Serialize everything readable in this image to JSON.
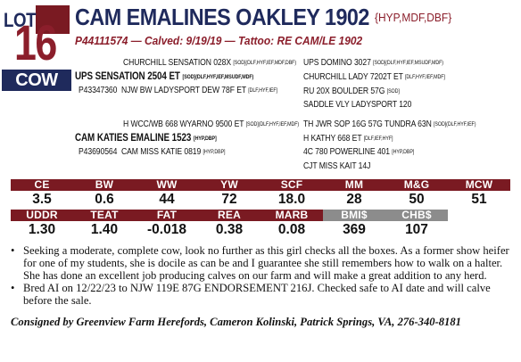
{
  "lot": {
    "label": "LOT",
    "number": "16",
    "type": "COW"
  },
  "animal": {
    "name": "CAM EMALINES OAKLEY 1902",
    "codes": "{HYP,MDF,DBF}",
    "reg_line": "P44111574 — Calved: 9/19/19 — Tattoo: RE CAM/LE 1902"
  },
  "pedigree": {
    "sire": {
      "sire_sire": {
        "name": "CHURCHILL SENSATION 028X",
        "tags": "[SOD](DLF,HYF,IEF,MDF,DBF)"
      },
      "name": "UPS SENSATION 2504 ET",
      "tags": "[SOD](DLF,HYF,IEF,MSUDF,MDF)",
      "reg": "P43347360",
      "sire_dam": {
        "name": "NJW BW LADYSPORT DEW 78F ET",
        "tags": "[DLF,HYF,IEF]"
      },
      "right": [
        {
          "name": "UPS DOMINO 3027",
          "tags": "[SOD](DLF,HYF,IEF,MSUDF,MDF)"
        },
        {
          "name": "CHURCHILL LADY 7202T ET",
          "tags": "[DLF,HYF,IEF,MDF]"
        },
        {
          "name": "RU 20X BOULDER 57G",
          "tags": "[SOD]"
        },
        {
          "name": "SADDLE VLY LADYSPORT 120",
          "tags": ""
        }
      ]
    },
    "dam": {
      "dam_sire": {
        "name": "H WCC/WB 668 WYARNO 9500 ET",
        "tags": "[SOD](DLF,HYF,IEF,MDF)"
      },
      "name": "CAM KATIES EMALINE 1523",
      "tags": "[HYP,DBP]",
      "reg": "P43690564",
      "dam_dam": {
        "name": "CAM MISS KATIE 0819",
        "tags": "[HYP,DBP]"
      },
      "right": [
        {
          "name": "TH JWR SOP 16G 57G TUNDRA 63N",
          "tags": "[SOD](DLF,HYF,IEF)"
        },
        {
          "name": "H KATHY 668 ET",
          "tags": "[DLF,IEF,HYF]"
        },
        {
          "name": "4C 780 POWERLINE 401",
          "tags": "[HYP,DBP]"
        },
        {
          "name": "CJT MISS KAIT 14J",
          "tags": ""
        }
      ]
    }
  },
  "epd_row1": {
    "headers": [
      "CE",
      "BW",
      "WW",
      "YW",
      "SCF",
      "MM",
      "M&G",
      "MCW"
    ],
    "values": [
      "3.5",
      "0.6",
      "44",
      "72",
      "18.0",
      "28",
      "50",
      "51"
    ]
  },
  "epd_row2": {
    "headers": [
      "UDDR",
      "TEAT",
      "FAT",
      "REA",
      "MARB",
      "BMI$",
      "CHB$",
      ""
    ],
    "values": [
      "1.30",
      "1.40",
      "-0.018",
      "0.38",
      "0.08",
      "369",
      "107",
      ""
    ]
  },
  "comments": [
    "Seeking a moderate, complete cow, look no further as this girl checks all the boxes. As a former show heifer for one of my students, she is docile as can be and I guarantee she still remembers how to walk on a halter. She has done an excellent job producing calves on our farm and will make a great addition to any herd.",
    "Bred AI on 12/22/23 to NJW 119E 87G ENDORSEMENT 216J. Checked safe to AI date and will calve before the sale."
  ],
  "consigned": "Consigned by Greenview Farm Herefords, Cameron Kolinski, Patrick Springs, VA, 276-340-8181",
  "colors": {
    "navy": "#1f2a5c",
    "maroon": "#7a1a22",
    "gray_header": "#8c8c8c"
  }
}
